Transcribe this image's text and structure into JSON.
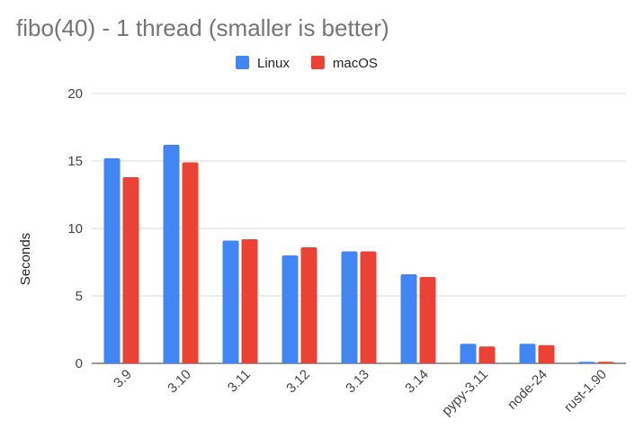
{
  "chart_data": {
    "type": "bar",
    "title": "fibo(40) - 1 thread (smaller is better)",
    "xlabel": "",
    "ylabel": "Seconds",
    "ylim": [
      0,
      20
    ],
    "yticks": [
      0,
      5,
      10,
      15,
      20
    ],
    "grid": true,
    "legend_position": "top",
    "categories": [
      "3.9",
      "3.10",
      "3.11",
      "3.12",
      "3.13",
      "3.14",
      "pypy-3.11",
      "node-24",
      "rust-1.90"
    ],
    "series": [
      {
        "name": "Linux",
        "color": "#4285f4",
        "values": [
          15.2,
          16.2,
          9.1,
          8.0,
          8.3,
          6.6,
          1.45,
          1.45,
          0.12
        ]
      },
      {
        "name": "macOS",
        "color": "#ea4335",
        "values": [
          13.8,
          14.9,
          9.2,
          8.6,
          8.3,
          6.4,
          1.25,
          1.35,
          0.12
        ]
      }
    ]
  }
}
